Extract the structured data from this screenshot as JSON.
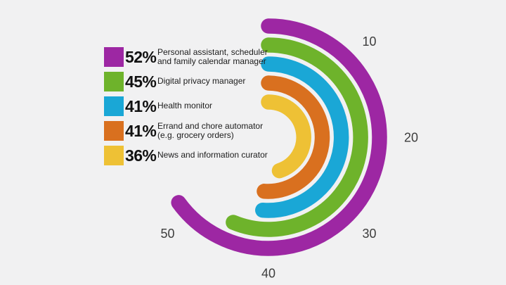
{
  "colors": {
    "background": "#f1f1f2",
    "tick_text": "#3d3d3d",
    "legend_value_text": "#111111",
    "legend_description_text": "#1c1c1c"
  },
  "chart_data": {
    "type": "bar",
    "variant": "radial (race-track, clockwise from top)",
    "title": "",
    "unit": "%",
    "series": [
      {
        "name": "Personal assistant, scheduler and family calendar manager",
        "value": 52,
        "color": "#9d27a3"
      },
      {
        "name": "Digital privacy manager",
        "value": 45,
        "color": "#6eb32b"
      },
      {
        "name": "Health monitor",
        "value": 41,
        "color": "#1aa7d6"
      },
      {
        "name": "Errand and chore automator (e.g. grocery orders)",
        "value": 41,
        "color": "#d9701f"
      },
      {
        "name": "News and information curator",
        "value": 36,
        "color": "#eec135"
      }
    ],
    "axis": {
      "ticks": [
        10,
        20,
        30,
        40,
        50
      ],
      "full_circle_value": 80,
      "start_angle_deg": 0,
      "direction": "clockwise"
    },
    "grid": false,
    "legend_position": "left"
  },
  "legend": {
    "items": [
      {
        "value_label": "52%",
        "lines": [
          "Personal assistant, scheduler",
          "and family calendar manager"
        ]
      },
      {
        "value_label": "45%",
        "lines": [
          "Digital privacy manager"
        ]
      },
      {
        "value_label": "41%",
        "lines": [
          "Health monitor"
        ]
      },
      {
        "value_label": "41%",
        "lines": [
          "Errand and chore automator",
          "(e.g. grocery orders)"
        ]
      },
      {
        "value_label": "36%",
        "lines": [
          "News and information curator"
        ]
      }
    ]
  }
}
